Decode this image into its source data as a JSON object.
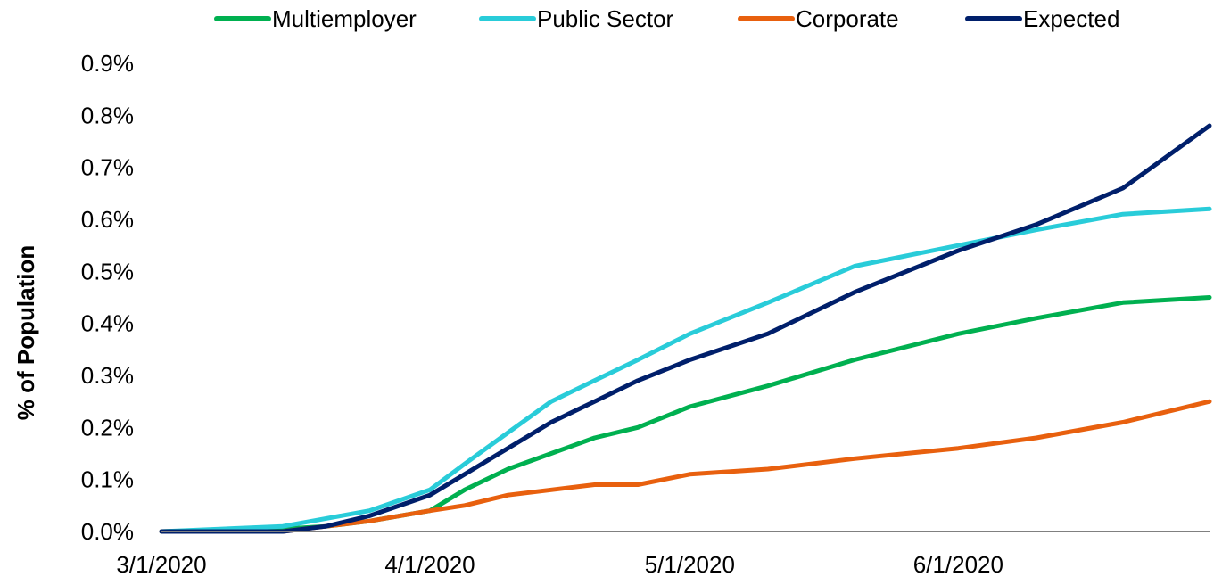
{
  "chart_data": {
    "type": "line",
    "title": "",
    "xlabel": "",
    "ylabel": "% of Population",
    "xlim": [
      "3/1/2020",
      "6/30/2020"
    ],
    "ylim": [
      0,
      0.009
    ],
    "y_ticks": [
      "0.0%",
      "0.1%",
      "0.2%",
      "0.3%",
      "0.4%",
      "0.5%",
      "0.6%",
      "0.7%",
      "0.8%",
      "0.9%"
    ],
    "x_ticks": [
      "3/1/2020",
      "4/1/2020",
      "5/1/2020",
      "6/1/2020"
    ],
    "legend_position": "top",
    "grid": false,
    "x": [
      "3/1/2020",
      "3/15/2020",
      "3/20/2020",
      "3/25/2020",
      "4/1/2020",
      "4/5/2020",
      "4/10/2020",
      "4/15/2020",
      "4/20/2020",
      "4/25/2020",
      "5/1/2020",
      "5/10/2020",
      "5/20/2020",
      "6/1/2020",
      "6/10/2020",
      "6/20/2020",
      "6/30/2020"
    ],
    "series": [
      {
        "name": "Multiemployer",
        "color": "#00b050",
        "values": [
          0.0,
          5e-05,
          0.0001,
          0.0002,
          0.0004,
          0.0008,
          0.0012,
          0.0015,
          0.0018,
          0.002,
          0.0024,
          0.0028,
          0.0033,
          0.0038,
          0.0041,
          0.0044,
          0.0045
        ]
      },
      {
        "name": "Public Sector",
        "color": "#29ccd9",
        "values": [
          0.0,
          0.0001,
          0.00025,
          0.0004,
          0.0008,
          0.0013,
          0.0019,
          0.0025,
          0.0029,
          0.0033,
          0.0038,
          0.0044,
          0.0051,
          0.0055,
          0.0058,
          0.0061,
          0.0062
        ]
      },
      {
        "name": "Corporate",
        "color": "#e8600e",
        "values": [
          0.0,
          0.0,
          0.0001,
          0.0002,
          0.0004,
          0.0005,
          0.0007,
          0.0008,
          0.0009,
          0.0009,
          0.0011,
          0.0012,
          0.0014,
          0.0016,
          0.0018,
          0.0021,
          0.0025
        ]
      },
      {
        "name": "Expected",
        "color": "#001f6b",
        "values": [
          0.0,
          0.0,
          0.0001,
          0.0003,
          0.0007,
          0.0011,
          0.0016,
          0.0021,
          0.0025,
          0.0029,
          0.0033,
          0.0038,
          0.0046,
          0.0054,
          0.0059,
          0.0066,
          0.0078
        ]
      }
    ]
  }
}
